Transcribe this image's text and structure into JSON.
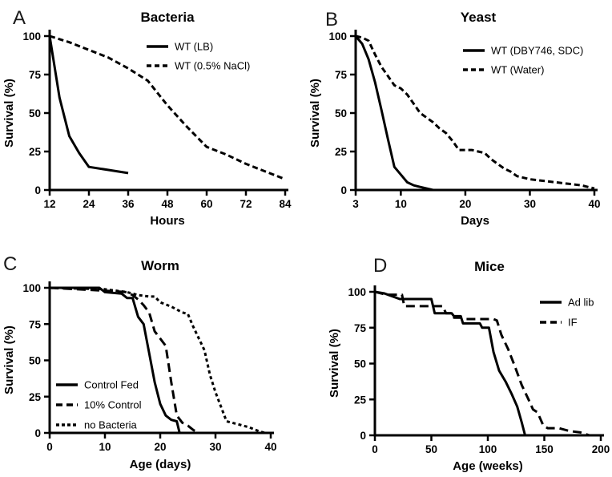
{
  "figure": {
    "background": "#ffffff",
    "ink_color": "#000000"
  },
  "chart_data": [
    {
      "type": "line",
      "panel_label": "A",
      "title": "Bacteria",
      "xlabel": "Hours",
      "ylabel": "Survival (%)",
      "xlim": [
        12,
        84
      ],
      "ylim": [
        0,
        100
      ],
      "xticks": [
        12,
        24,
        36,
        48,
        60,
        72,
        84
      ],
      "yticks": [
        0,
        25,
        50,
        75,
        100
      ],
      "grid": false,
      "legend_position": "top-right-inside",
      "series": [
        {
          "name": "WT (LB)",
          "line_style": "solid",
          "points": [
            [
              12,
              100
            ],
            [
              15,
              60
            ],
            [
              18,
              35
            ],
            [
              21,
              24
            ],
            [
              24,
              15
            ],
            [
              30,
              13
            ],
            [
              36,
              11
            ]
          ]
        },
        {
          "name": "WT (0.5% NaCl)",
          "line_style": "medium-dash",
          "points": [
            [
              12,
              100
            ],
            [
              18,
              96
            ],
            [
              24,
              91
            ],
            [
              30,
              86
            ],
            [
              36,
              79
            ],
            [
              42,
              71
            ],
            [
              48,
              55
            ],
            [
              54,
              41
            ],
            [
              60,
              28
            ],
            [
              66,
              23
            ],
            [
              72,
              17
            ],
            [
              78,
              12
            ],
            [
              84,
              7
            ]
          ]
        }
      ]
    },
    {
      "type": "line",
      "panel_label": "B",
      "title": "Yeast",
      "xlabel": "Days",
      "ylabel": "Survival (%)",
      "xlim": [
        3,
        40
      ],
      "ylim": [
        0,
        100
      ],
      "xticks": [
        3,
        10,
        20,
        30,
        40
      ],
      "yticks": [
        0,
        25,
        50,
        75,
        100
      ],
      "grid": false,
      "legend_position": "top-right-inside",
      "series": [
        {
          "name": "WT (DBY746, SDC)",
          "line_style": "solid",
          "points": [
            [
              3,
              100
            ],
            [
              4,
              95
            ],
            [
              5,
              85
            ],
            [
              6,
              70
            ],
            [
              7,
              52
            ],
            [
              8,
              33
            ],
            [
              9,
              15
            ],
            [
              10,
              10
            ],
            [
              11,
              5
            ],
            [
              12,
              3
            ],
            [
              13,
              2
            ],
            [
              15,
              0
            ]
          ]
        },
        {
          "name": "WT (Water)",
          "line_style": "medium-dash",
          "points": [
            [
              3,
              100
            ],
            [
              4,
              99
            ],
            [
              5,
              97
            ],
            [
              6,
              88
            ],
            [
              7,
              80
            ],
            [
              8,
              74
            ],
            [
              9,
              68
            ],
            [
              10,
              66
            ],
            [
              11,
              62
            ],
            [
              12,
              56
            ],
            [
              13,
              50
            ],
            [
              14,
              47
            ],
            [
              15,
              44
            ],
            [
              16,
              40
            ],
            [
              17,
              37
            ],
            [
              18,
              32
            ],
            [
              19,
              26
            ],
            [
              21,
              26
            ],
            [
              22,
              25
            ],
            [
              23,
              24
            ],
            [
              24,
              20
            ],
            [
              25,
              17
            ],
            [
              26,
              14
            ],
            [
              27,
              12
            ],
            [
              28,
              9
            ],
            [
              30,
              7
            ],
            [
              32,
              6
            ],
            [
              34,
              5
            ],
            [
              36,
              4
            ],
            [
              38,
              3
            ],
            [
              40,
              1
            ]
          ]
        }
      ]
    },
    {
      "type": "line",
      "panel_label": "C",
      "title": "Worm",
      "xlabel": "Age (days)",
      "ylabel": "Survival (%)",
      "xlim": [
        0,
        40
      ],
      "ylim": [
        0,
        100
      ],
      "xticks": [
        0,
        10,
        20,
        30,
        40
      ],
      "yticks": [
        0,
        25,
        50,
        75,
        100
      ],
      "grid": false,
      "legend_position": "bottom-left-inside",
      "series": [
        {
          "name": "Control Fed",
          "line_style": "solid",
          "points": [
            [
              0,
              100
            ],
            [
              9,
              100
            ],
            [
              10,
              97
            ],
            [
              13,
              96
            ],
            [
              14,
              93
            ],
            [
              15,
              93
            ],
            [
              16,
              80
            ],
            [
              17,
              75
            ],
            [
              18,
              55
            ],
            [
              19,
              35
            ],
            [
              20,
              20
            ],
            [
              21,
              12
            ],
            [
              22,
              9
            ],
            [
              23,
              8
            ],
            [
              23.5,
              0
            ]
          ]
        },
        {
          "name": "10% Control",
          "line_style": "long-dash",
          "points": [
            [
              0,
              100
            ],
            [
              10,
              98
            ],
            [
              14,
              97
            ],
            [
              15,
              95
            ],
            [
              16,
              92
            ],
            [
              17,
              88
            ],
            [
              18,
              83
            ],
            [
              19,
              70
            ],
            [
              20,
              65
            ],
            [
              21,
              60
            ],
            [
              22,
              35
            ],
            [
              23,
              12
            ],
            [
              24,
              7
            ],
            [
              25,
              5
            ],
            [
              26,
              2
            ],
            [
              27,
              0
            ]
          ]
        },
        {
          "name": "no Bacteria",
          "line_style": "short-dash",
          "points": [
            [
              0,
              100
            ],
            [
              10,
              99
            ],
            [
              14,
              97
            ],
            [
              16,
              95
            ],
            [
              18,
              94
            ],
            [
              19,
              94
            ],
            [
              20,
              90
            ],
            [
              22,
              87
            ],
            [
              24,
              83
            ],
            [
              25,
              82
            ],
            [
              26,
              73
            ],
            [
              27,
              65
            ],
            [
              28,
              57
            ],
            [
              29,
              40
            ],
            [
              30,
              28
            ],
            [
              31,
              18
            ],
            [
              32,
              8
            ],
            [
              34,
              6
            ],
            [
              36,
              4
            ],
            [
              38,
              1
            ],
            [
              39,
              0
            ]
          ]
        }
      ]
    },
    {
      "type": "line",
      "panel_label": "D",
      "title": "Mice",
      "xlabel": "Age (weeks)",
      "ylabel": "Survival (%)",
      "xlim": [
        0,
        200
      ],
      "ylim": [
        0,
        100
      ],
      "xticks": [
        0,
        50,
        100,
        150,
        200
      ],
      "yticks": [
        0,
        25,
        50,
        75,
        100
      ],
      "grid": false,
      "legend_position": "top-right-inside",
      "series": [
        {
          "name": "Ad lib",
          "line_style": "solid",
          "points": [
            [
              0,
              100
            ],
            [
              8,
              99
            ],
            [
              22,
              95
            ],
            [
              50,
              95
            ],
            [
              53,
              85
            ],
            [
              68,
              85
            ],
            [
              70,
              83
            ],
            [
              76,
              83
            ],
            [
              78,
              78
            ],
            [
              93,
              78
            ],
            [
              95,
              75
            ],
            [
              101,
              75
            ],
            [
              105,
              58
            ],
            [
              110,
              45
            ],
            [
              116,
              37
            ],
            [
              121,
              29
            ],
            [
              126,
              20
            ],
            [
              130,
              9
            ],
            [
              133,
              0
            ]
          ]
        },
        {
          "name": "IF",
          "line_style": "long-dash",
          "points": [
            [
              0,
              100
            ],
            [
              10,
              98
            ],
            [
              24,
              98
            ],
            [
              26,
              90
            ],
            [
              60,
              90
            ],
            [
              63,
              85
            ],
            [
              68,
              85
            ],
            [
              70,
              82
            ],
            [
              79,
              82
            ],
            [
              81,
              81
            ],
            [
              105,
              81
            ],
            [
              108,
              80
            ],
            [
              112,
              70
            ],
            [
              118,
              60
            ],
            [
              124,
              48
            ],
            [
              130,
              35
            ],
            [
              136,
              25
            ],
            [
              140,
              18
            ],
            [
              144,
              16
            ],
            [
              149,
              7
            ],
            [
              153,
              5
            ],
            [
              163,
              5
            ],
            [
              172,
              3
            ],
            [
              182,
              2
            ],
            [
              190,
              0
            ]
          ]
        }
      ]
    }
  ]
}
